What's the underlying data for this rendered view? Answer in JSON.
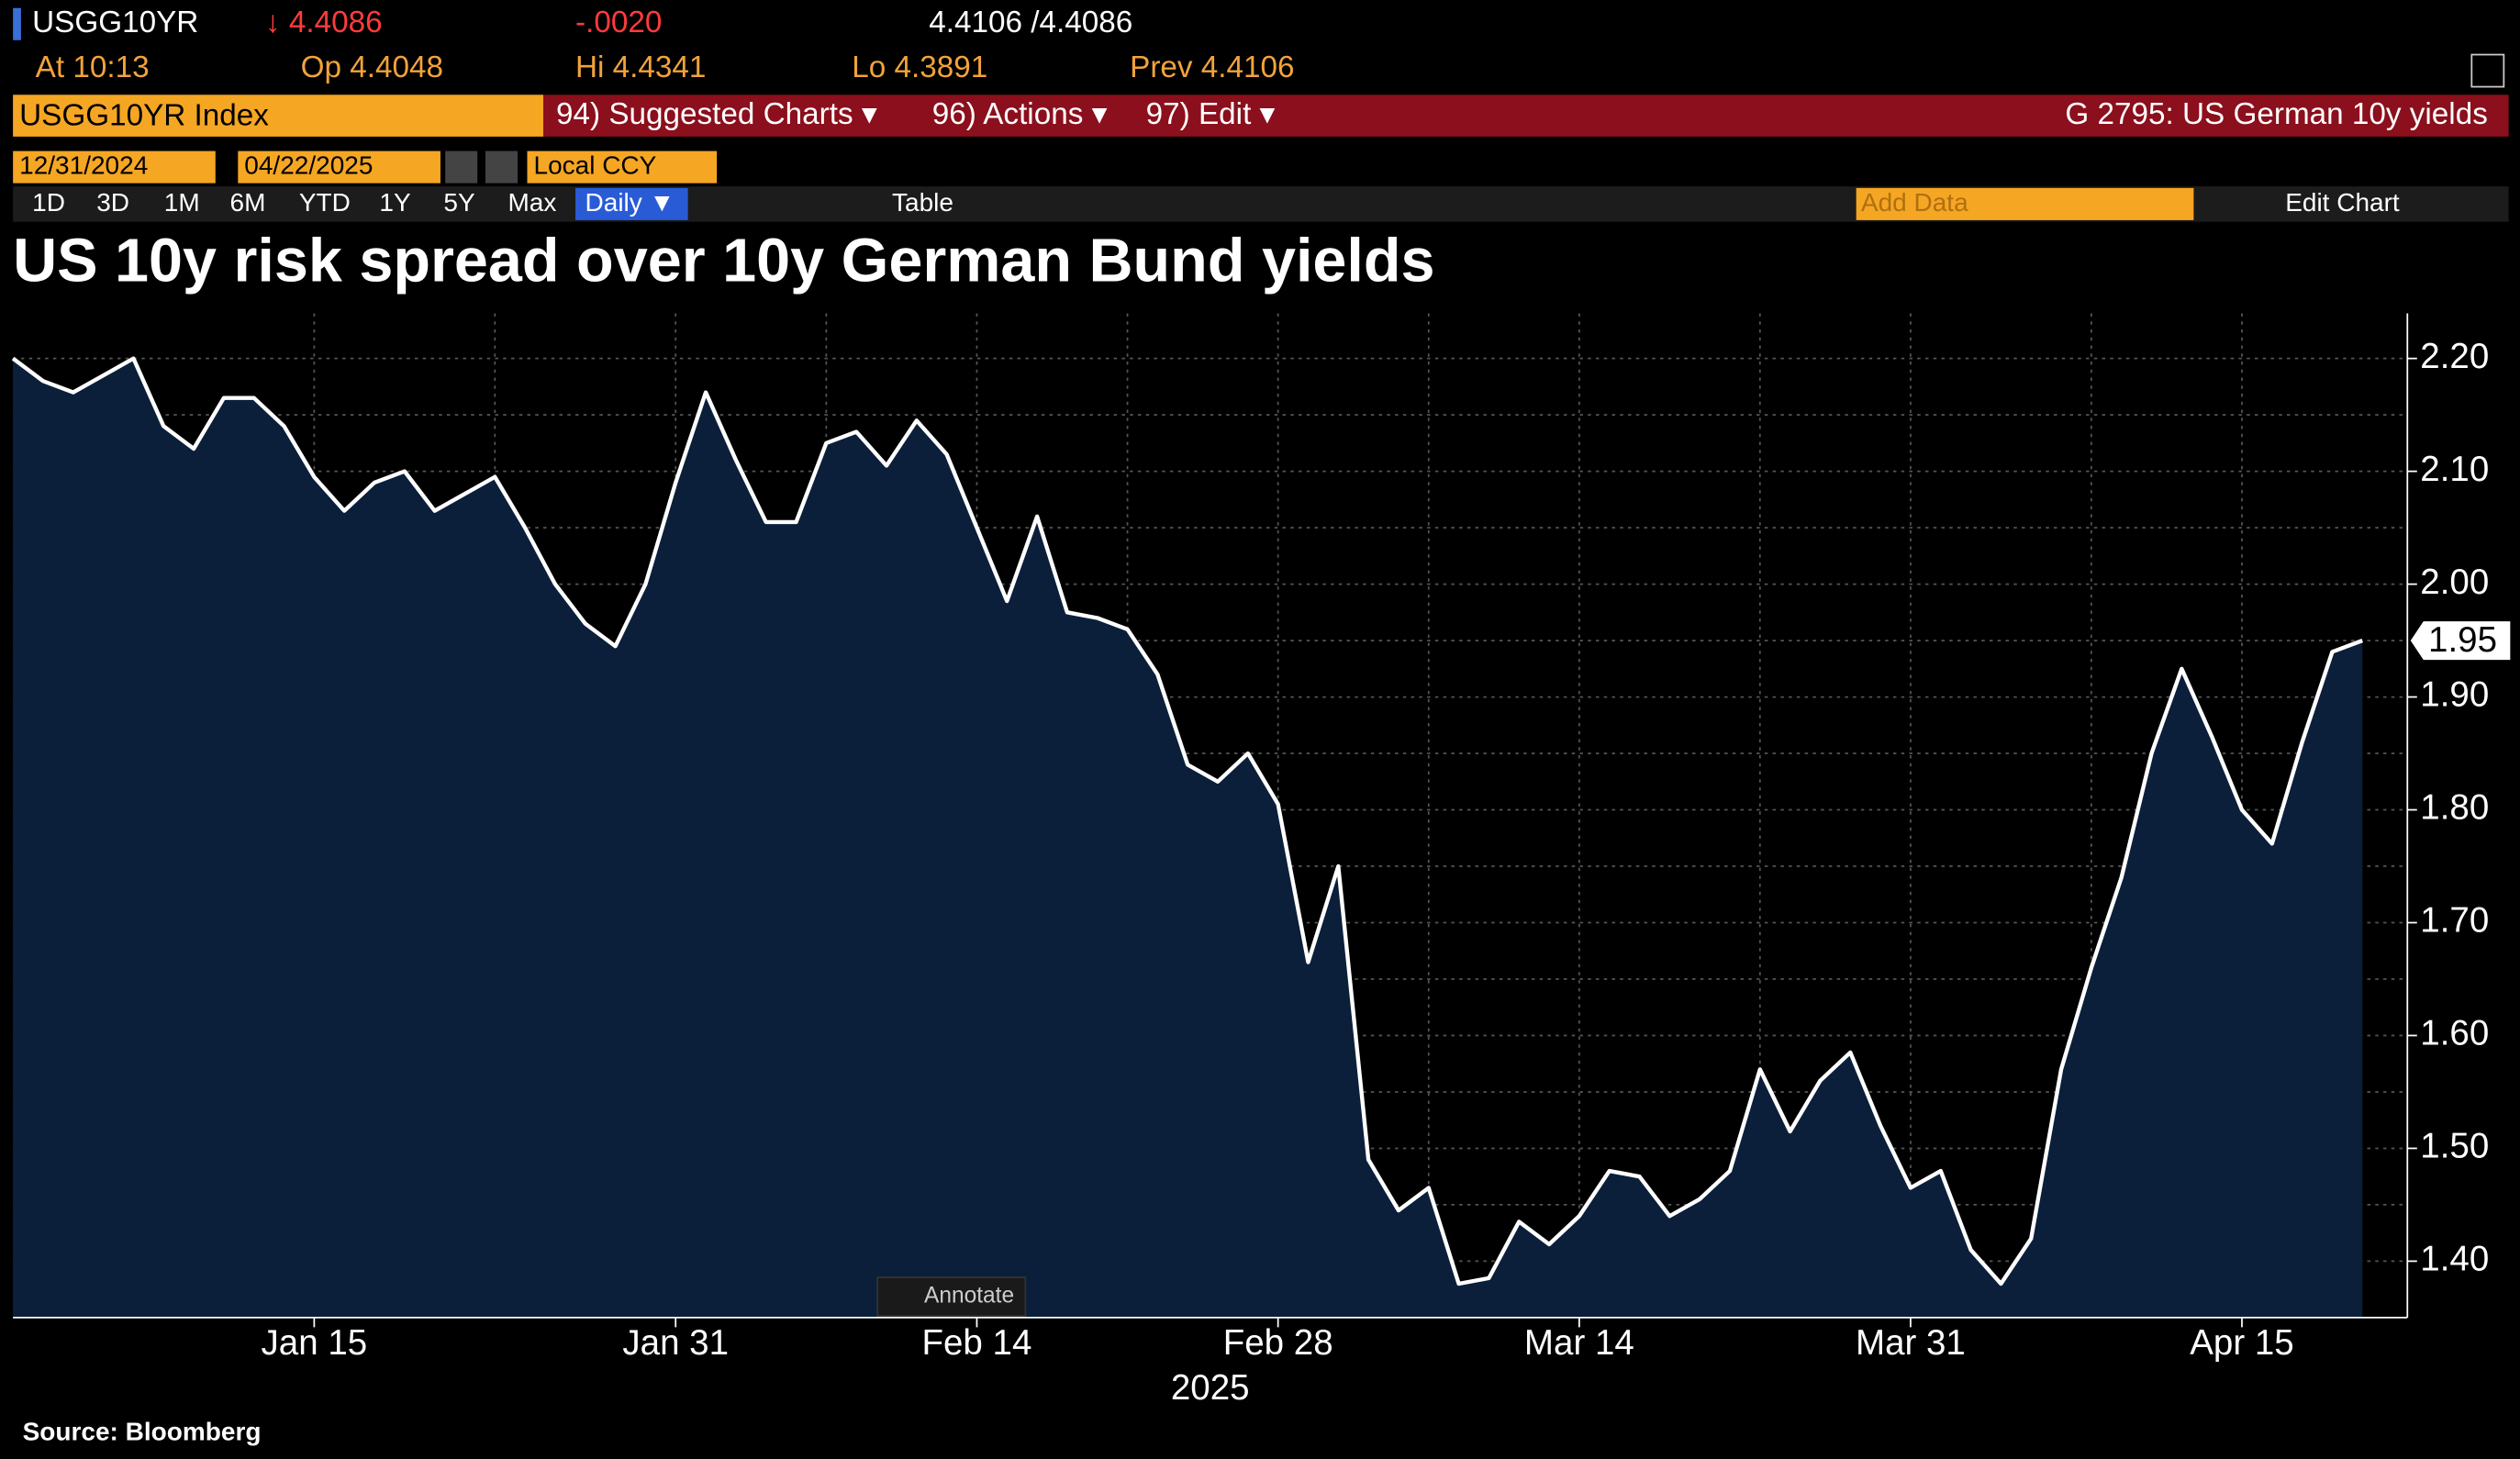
{
  "terminal": {
    "ticker": "USGG10YR",
    "last": "↓ 4.4086",
    "change": "-.0020",
    "bid_ask": "4.4106 /4.4086",
    "at": "At 10:13",
    "open": "Op 4.4048",
    "high": "Hi 4.4341",
    "low": "Lo 4.3891",
    "prev": "Prev 4.4106",
    "security": "USGG10YR Index",
    "menu": [
      "94) Suggested Charts ▾",
      "96) Actions ▾",
      "97) Edit ▾"
    ],
    "chart_id": "G 2795: US German 10y yields",
    "start_date": "12/31/2024",
    "end_date": "04/22/2025",
    "currency": "Local CCY",
    "periods": [
      "1D",
      "3D",
      "1M",
      "6M",
      "YTD",
      "1Y",
      "5Y",
      "Max"
    ],
    "frequency": "Daily ▼",
    "table": "Table",
    "add_data": "Add Data",
    "edit_chart": "Edit Chart",
    "annotate": "Annotate",
    "source": "Source: Bloomberg"
  },
  "chart_data": {
    "type": "area",
    "title": "US 10y risk spread over 10y German Bund yields",
    "x_year": "2025",
    "color": "#ffffff",
    "fill": "#0b1f3b",
    "grid": true,
    "last_label": "1.95",
    "x": [
      "2024-12-31",
      "2025-01-02",
      "2025-01-03",
      "2025-01-06",
      "2025-01-07",
      "2025-01-08",
      "2025-01-09",
      "2025-01-10",
      "2025-01-13",
      "2025-01-14",
      "2025-01-15",
      "2025-01-16",
      "2025-01-17",
      "2025-01-20",
      "2025-01-21",
      "2025-01-22",
      "2025-01-23",
      "2025-01-24",
      "2025-01-27",
      "2025-01-28",
      "2025-01-29",
      "2025-01-30",
      "2025-01-31",
      "2025-02-03",
      "2025-02-04",
      "2025-02-05",
      "2025-02-06",
      "2025-02-07",
      "2025-02-10",
      "2025-02-11",
      "2025-02-12",
      "2025-02-13",
      "2025-02-14",
      "2025-02-17",
      "2025-02-18",
      "2025-02-19",
      "2025-02-20",
      "2025-02-21",
      "2025-02-24",
      "2025-02-25",
      "2025-02-26",
      "2025-02-27",
      "2025-02-28",
      "2025-03-03",
      "2025-03-04",
      "2025-03-05",
      "2025-03-06",
      "2025-03-07",
      "2025-03-10",
      "2025-03-11",
      "2025-03-12",
      "2025-03-13",
      "2025-03-14",
      "2025-03-17",
      "2025-03-18",
      "2025-03-19",
      "2025-03-20",
      "2025-03-21",
      "2025-03-24",
      "2025-03-25",
      "2025-03-26",
      "2025-03-27",
      "2025-03-28",
      "2025-03-31",
      "2025-04-01",
      "2025-04-02",
      "2025-04-03",
      "2025-04-04",
      "2025-04-07",
      "2025-04-08",
      "2025-04-09",
      "2025-04-10",
      "2025-04-11",
      "2025-04-14",
      "2025-04-15",
      "2025-04-16",
      "2025-04-17",
      "2025-04-21",
      "2025-04-22"
    ],
    "values": [
      2.2,
      2.18,
      2.17,
      2.185,
      2.2,
      2.14,
      2.12,
      2.165,
      2.165,
      2.14,
      2.095,
      2.065,
      2.09,
      2.1,
      2.065,
      2.08,
      2.095,
      2.05,
      2.0,
      1.965,
      1.945,
      2.0,
      2.09,
      2.17,
      2.11,
      2.055,
      2.055,
      2.125,
      2.135,
      2.105,
      2.145,
      2.115,
      2.05,
      1.985,
      2.06,
      1.975,
      1.97,
      1.96,
      1.92,
      1.84,
      1.825,
      1.85,
      1.805,
      1.665,
      1.75,
      1.49,
      1.445,
      1.465,
      1.38,
      1.385,
      1.435,
      1.415,
      1.44,
      1.48,
      1.475,
      1.44,
      1.455,
      1.48,
      1.57,
      1.515,
      1.56,
      1.585,
      1.52,
      1.465,
      1.48,
      1.41,
      1.38,
      1.42,
      1.57,
      1.66,
      1.74,
      1.85,
      1.925,
      1.865,
      1.8,
      1.77,
      1.86,
      1.94,
      1.95
    ],
    "ylim": [
      1.35,
      2.24
    ],
    "yticks": [
      {
        "value": 1.4,
        "label": "1.40"
      },
      {
        "value": 1.5,
        "label": "1.50"
      },
      {
        "value": 1.6,
        "label": "1.60"
      },
      {
        "value": 1.7,
        "label": "1.70"
      },
      {
        "value": 1.8,
        "label": "1.80"
      },
      {
        "value": 1.9,
        "label": "1.90"
      },
      {
        "value": 2,
        "label": "2.00"
      },
      {
        "value": 2.1,
        "label": "2.10"
      },
      {
        "value": 2.2,
        "label": "2.20"
      }
    ],
    "yminorticks": [
      1.45,
      1.55,
      1.65,
      1.75,
      1.85,
      1.95,
      2.05,
      2.15
    ],
    "xticks": [
      {
        "value": "2025-01-15",
        "label": "Jan 15"
      },
      {
        "value": "2025-01-31",
        "label": "Jan 31"
      },
      {
        "value": "2025-02-14",
        "label": "Feb 14"
      },
      {
        "value": "2025-02-28",
        "label": "Feb 28"
      },
      {
        "value": "2025-03-14",
        "label": "Mar 14"
      },
      {
        "value": "2025-03-31",
        "label": "Mar 31"
      },
      {
        "value": "2025-04-15",
        "label": "Apr 15"
      }
    ],
    "xminorticks": [
      "2025-01-23",
      "2025-02-07",
      "2025-02-21",
      "2025-03-07",
      "2025-03-24",
      "2025-04-08"
    ]
  }
}
